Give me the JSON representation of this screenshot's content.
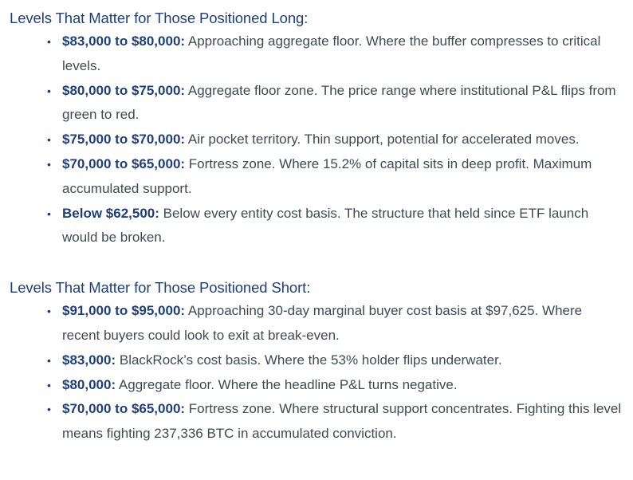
{
  "long_section": {
    "heading": "Levels That Matter for Those Positioned Long:",
    "items": [
      {
        "range": "$83,000 to $80,000:",
        "text": "Approaching aggregate floor. Where the buffer compresses to critical levels."
      },
      {
        "range": "$80,000 to $75,000:",
        "text": "Aggregate floor zone. The price range where institutional P&L flips from green to red."
      },
      {
        "range": "$75,000 to $70,000:",
        "text": "Air pocket territory. Thin support, potential for accelerated moves."
      },
      {
        "range": "$70,000 to $65,000:",
        "text": "Fortress zone. Where 15.2% of capital sits in deep profit. Maximum accumulated support."
      },
      {
        "range": "Below $62,500:",
        "text": "Below every entity cost basis. The structure that held since ETF launch would be broken."
      }
    ]
  },
  "short_section": {
    "heading": "Levels That Matter for Those Positioned Short:",
    "items": [
      {
        "range": "$91,000 to $95,000:",
        "text": "Approaching 30-day marginal buyer cost basis at $97,625. Where recent buyers could look to exit at break-even."
      },
      {
        "range": "$83,000:",
        "text": "BlackRock’s cost basis. Where the 53% holder flips underwater."
      },
      {
        "range": "$80,000:",
        "text": "Aggregate floor. Where the headline P&L turns negative."
      },
      {
        "range": "$70,000 to $65,000:",
        "text": "Fortress zone. Where structural support concentrates. Fighting this level means fighting 237,336 BTC in accumulated conviction."
      }
    ]
  },
  "bullet_char": "•"
}
